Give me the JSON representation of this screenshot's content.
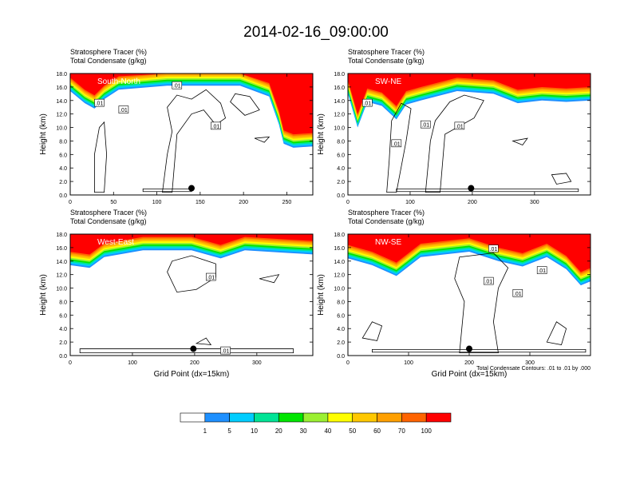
{
  "title": "2014-02-16_09:00:00",
  "footnote": "Total Condensate Contours: .01 to .01 by .000",
  "colors": {
    "levels": [
      "#ffffff",
      "#1e90ff",
      "#00cdff",
      "#00e496",
      "#00e600",
      "#9bf032",
      "#ffff00",
      "#ffc800",
      "#ffa000",
      "#ff6400",
      "#ff0000"
    ],
    "contour": "#000000",
    "frame": "#000000"
  },
  "colorbar": {
    "labels": [
      "1",
      "5",
      "10",
      "20",
      "30",
      "40",
      "50",
      "60",
      "70",
      "100"
    ]
  },
  "chart_data": [
    {
      "type": "heatmap",
      "panel_label": "South-North",
      "subtitle_line1": "Stratosphere Tracer   (%)",
      "subtitle_line2": "Total Condensate   (g/kg)",
      "ylabel": "Height (km)",
      "xlabel": "",
      "xlim": [
        0,
        280
      ],
      "ylim": [
        0,
        18
      ],
      "xticks": [
        "0",
        "50",
        "100",
        "150",
        "200",
        "250"
      ],
      "yticks": [
        "0.0",
        "2.0",
        "4.0",
        "6.0",
        "8.0",
        "10.0",
        "12.0",
        "14.0",
        "16.0",
        "18.0"
      ],
      "contour_labels": [
        ".01",
        ".01",
        ".01",
        ".01"
      ],
      "marker": [
        140,
        1.0
      ]
    },
    {
      "type": "heatmap",
      "panel_label": "SW-NE",
      "subtitle_line1": "Stratosphere Tracer   (%)",
      "subtitle_line2": "Total Condensate   (g/kg)",
      "ylabel": "Height (km)",
      "xlabel": "",
      "xlim": [
        0,
        390
      ],
      "ylim": [
        0,
        18
      ],
      "xticks": [
        "0",
        "100",
        "200",
        "300"
      ],
      "yticks": [
        "0.0",
        "2.0",
        "4.0",
        "6.0",
        "8.0",
        "10.0",
        "12.0",
        "14.0",
        "16.0",
        "18.0"
      ],
      "contour_labels": [
        ".01",
        ".01",
        ".01",
        ".01"
      ],
      "marker": [
        198,
        1.0
      ]
    },
    {
      "type": "heatmap",
      "panel_label": "West-East",
      "subtitle_line1": "Stratosphere Tracer   (%)",
      "subtitle_line2": "Total Condensate   (g/kg)",
      "ylabel": "Height (km)",
      "xlabel": "Grid Point (dx=15km)",
      "xlim": [
        0,
        390
      ],
      "ylim": [
        0,
        18
      ],
      "xticks": [
        "0",
        "100",
        "200",
        "300"
      ],
      "yticks": [
        "0.0",
        "2.0",
        "4.0",
        "6.0",
        "8.0",
        "10.0",
        "12.0",
        "14.0",
        "16.0",
        "18.0"
      ],
      "contour_labels": [
        ".01",
        ".01"
      ],
      "marker": [
        198,
        1.0
      ]
    },
    {
      "type": "heatmap",
      "panel_label": "NW-SE",
      "subtitle_line1": "Stratosphere Tracer   (%)",
      "subtitle_line2": "Total Condensate   (g/kg)",
      "ylabel": "Height (km)",
      "xlabel": "Grid Point (dx=15km)",
      "xlim": [
        0,
        400
      ],
      "ylim": [
        0,
        18
      ],
      "xticks": [
        "0",
        "100",
        "200",
        "300"
      ],
      "yticks": [
        "0.0",
        "2.0",
        "4.0",
        "6.0",
        "8.0",
        "10.0",
        "12.0",
        "14.0",
        "16.0",
        "18.0"
      ],
      "contour_labels": [
        ".01",
        ".01",
        ".01",
        ".01"
      ],
      "marker": [
        200,
        1.0
      ]
    }
  ]
}
